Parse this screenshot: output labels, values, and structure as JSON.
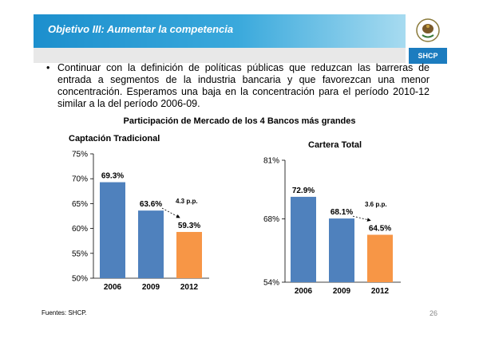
{
  "header": {
    "title": "Objetivo III: Aumentar la competencia",
    "agency_label": "SHCP"
  },
  "body_text": {
    "bullet": "•",
    "paragraph": "Continuar con la definición de políticas públicas que reduzcan las barreras de entrada a segmentos de la industria bancaria y que favorezcan una menor concentración. Esperamos una baja en la concentración para el período 2010-12 similar a la del período 2006-09."
  },
  "figure_title": "Participación de Mercado de los 4 Bancos más grandes",
  "colors": {
    "bar_blue": "#4f81bd",
    "bar_orange": "#f79646",
    "header_blue": "#1c8fcd",
    "shcp_blue": "#1c7cbf"
  },
  "chart_data": [
    {
      "type": "bar",
      "title": "Captación Tradicional",
      "categories": [
        "2006",
        "2009",
        "2012"
      ],
      "values": [
        69.3,
        63.6,
        59.3
      ],
      "value_labels": [
        "69.3%",
        "63.6%",
        "59.3%"
      ],
      "bar_colors": [
        "#4f81bd",
        "#4f81bd",
        "#f79646"
      ],
      "ylim": [
        50,
        75
      ],
      "yticks": [
        50,
        55,
        60,
        65,
        70,
        75
      ],
      "ytick_labels": [
        "50%",
        "55%",
        "60%",
        "65%",
        "70%",
        "75%"
      ],
      "xlabel": "",
      "ylabel": "",
      "grid": false,
      "annotation": "4.3 p.p."
    },
    {
      "type": "bar",
      "title": "Cartera Total",
      "categories": [
        "2006",
        "2009",
        "2012"
      ],
      "values": [
        72.9,
        68.1,
        64.5
      ],
      "value_labels": [
        "72.9%",
        "68.1%",
        "64.5%"
      ],
      "bar_colors": [
        "#4f81bd",
        "#4f81bd",
        "#f79646"
      ],
      "ylim": [
        54,
        81
      ],
      "yticks": [
        54,
        68,
        81
      ],
      "ytick_labels": [
        "54%",
        "68%",
        "81%"
      ],
      "xlabel": "",
      "ylabel": "",
      "grid": false,
      "annotation": "3.6 p.p."
    }
  ],
  "footer": {
    "source": "Fuentes: SHCP.",
    "page_number": "26"
  }
}
